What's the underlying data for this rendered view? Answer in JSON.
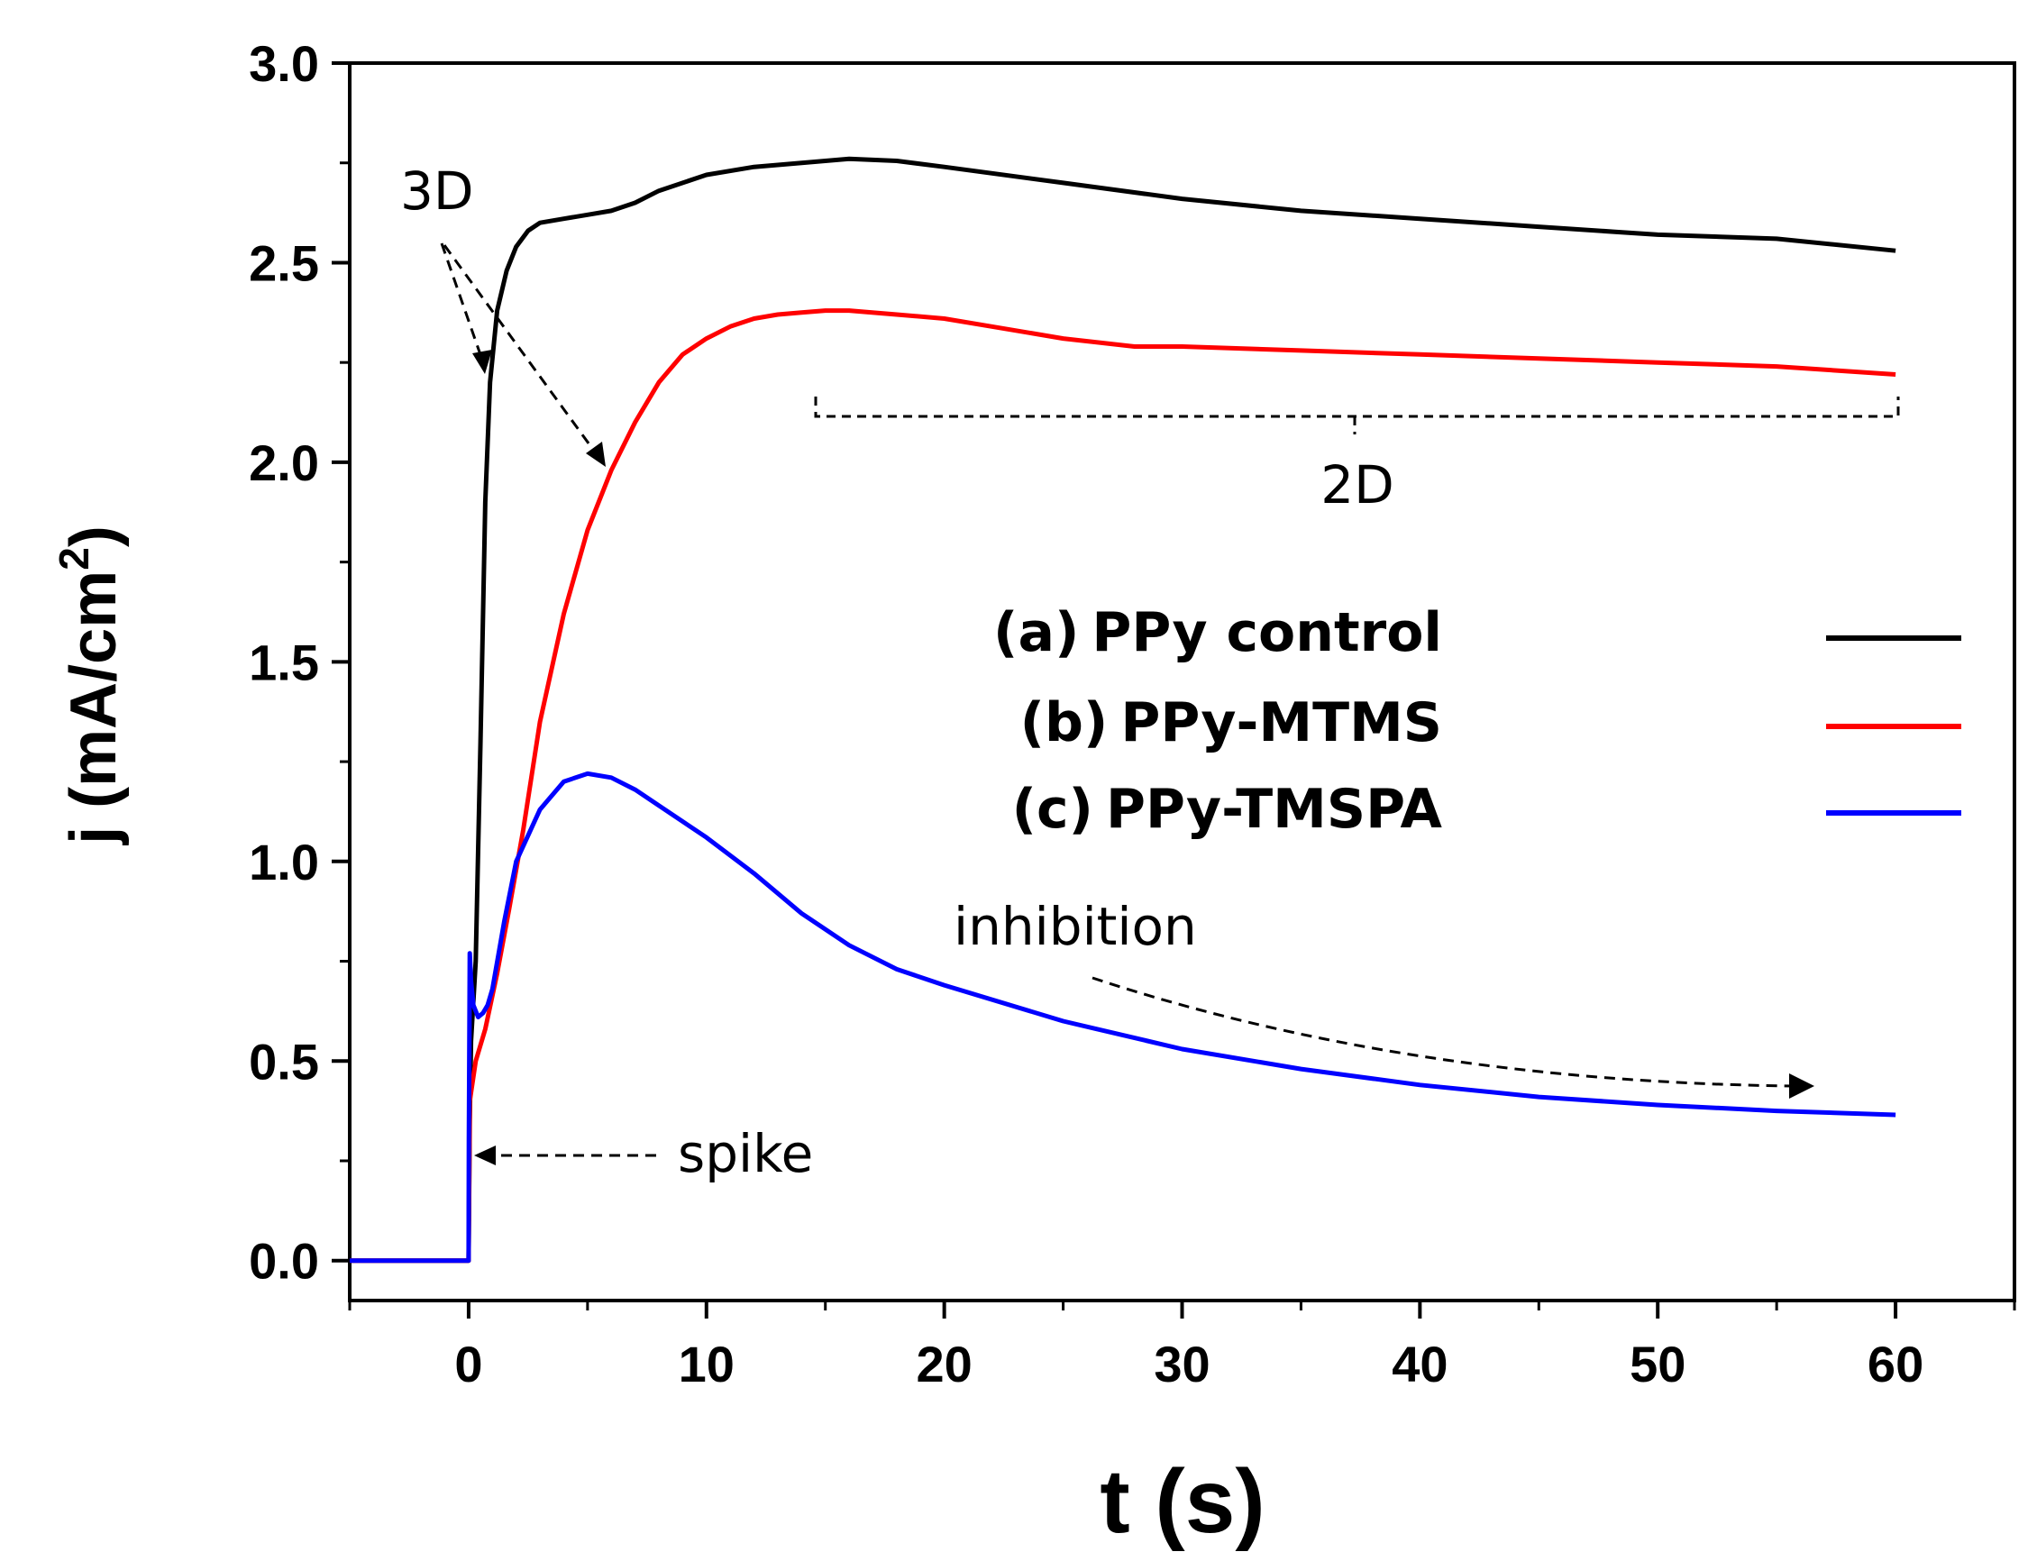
{
  "chart_data": {
    "type": "line",
    "title": "",
    "xlabel": "t (s)",
    "ylabel_main": "j (mA/cm",
    "ylabel_sup": "2",
    "ylabel_close": ")",
    "xlim": [
      -5,
      65
    ],
    "ylim": [
      -0.1,
      3.0
    ],
    "xticks": [
      0,
      10,
      20,
      30,
      40,
      50,
      60
    ],
    "xtick_labels": [
      "0",
      "10",
      "20",
      "30",
      "40",
      "50",
      "60"
    ],
    "yticks": [
      0.0,
      0.5,
      1.0,
      1.5,
      2.0,
      2.5,
      3.0
    ],
    "ytick_labels": [
      "0.0",
      "0.5",
      "1.0",
      "1.5",
      "2.0",
      "2.5",
      "3.0"
    ],
    "grid": false,
    "legend_position": "right",
    "series": [
      {
        "name": "(a) PPy control",
        "label_prefix": "(a)",
        "label_name": "PPy control",
        "color": "#000000",
        "x": [
          -5,
          0,
          0.05,
          0.1,
          0.3,
          0.5,
          0.7,
          0.9,
          1.2,
          1.6,
          2,
          2.5,
          3,
          4,
          5,
          6,
          7,
          8,
          10,
          12,
          14,
          16,
          18,
          20,
          25,
          30,
          35,
          40,
          45,
          50,
          55,
          60
        ],
        "y": [
          0,
          0,
          0.35,
          0.55,
          0.75,
          1.3,
          1.9,
          2.2,
          2.38,
          2.48,
          2.54,
          2.58,
          2.6,
          2.61,
          2.62,
          2.63,
          2.65,
          2.68,
          2.72,
          2.74,
          2.75,
          2.76,
          2.755,
          2.74,
          2.7,
          2.66,
          2.63,
          2.61,
          2.59,
          2.57,
          2.56,
          2.53
        ]
      },
      {
        "name": "(b) PPy-MTMS",
        "label_prefix": "(b)",
        "label_name": "PPy-MTMS",
        "color": "#ff0000",
        "x": [
          -5,
          0,
          0.05,
          0.3,
          0.7,
          1.2,
          1.7,
          2.3,
          3,
          4,
          5,
          6,
          7,
          8,
          9,
          10,
          11,
          12,
          13,
          14,
          15,
          16,
          18,
          20,
          22,
          25,
          28,
          30,
          35,
          40,
          45,
          50,
          55,
          60
        ],
        "y": [
          0,
          0,
          0.4,
          0.5,
          0.58,
          0.72,
          0.88,
          1.08,
          1.35,
          1.62,
          1.83,
          1.98,
          2.1,
          2.2,
          2.27,
          2.31,
          2.34,
          2.36,
          2.37,
          2.375,
          2.38,
          2.38,
          2.37,
          2.36,
          2.34,
          2.31,
          2.29,
          2.29,
          2.28,
          2.27,
          2.26,
          2.25,
          2.24,
          2.22
        ]
      },
      {
        "name": "(c) PPy-TMSPA",
        "label_prefix": "(c)",
        "label_name": "PPy-TMSPA",
        "color": "#0000ff",
        "x": [
          -5,
          0,
          0.01,
          0.05,
          0.1,
          0.2,
          0.4,
          0.6,
          0.8,
          1,
          1.5,
          2,
          3,
          4,
          5,
          6,
          7,
          8,
          10,
          12,
          14,
          16,
          18,
          20,
          25,
          30,
          35,
          40,
          45,
          50,
          55,
          60
        ],
        "y": [
          0,
          0,
          0.3,
          0.77,
          0.7,
          0.64,
          0.61,
          0.62,
          0.64,
          0.68,
          0.85,
          1.0,
          1.13,
          1.2,
          1.22,
          1.21,
          1.18,
          1.14,
          1.06,
          0.97,
          0.87,
          0.79,
          0.73,
          0.69,
          0.6,
          0.53,
          0.48,
          0.44,
          0.41,
          0.39,
          0.375,
          0.365
        ]
      }
    ],
    "annotations": {
      "three_d": "3D",
      "two_d": "2D",
      "spike": "spike",
      "inhibition": "inhibition"
    }
  }
}
